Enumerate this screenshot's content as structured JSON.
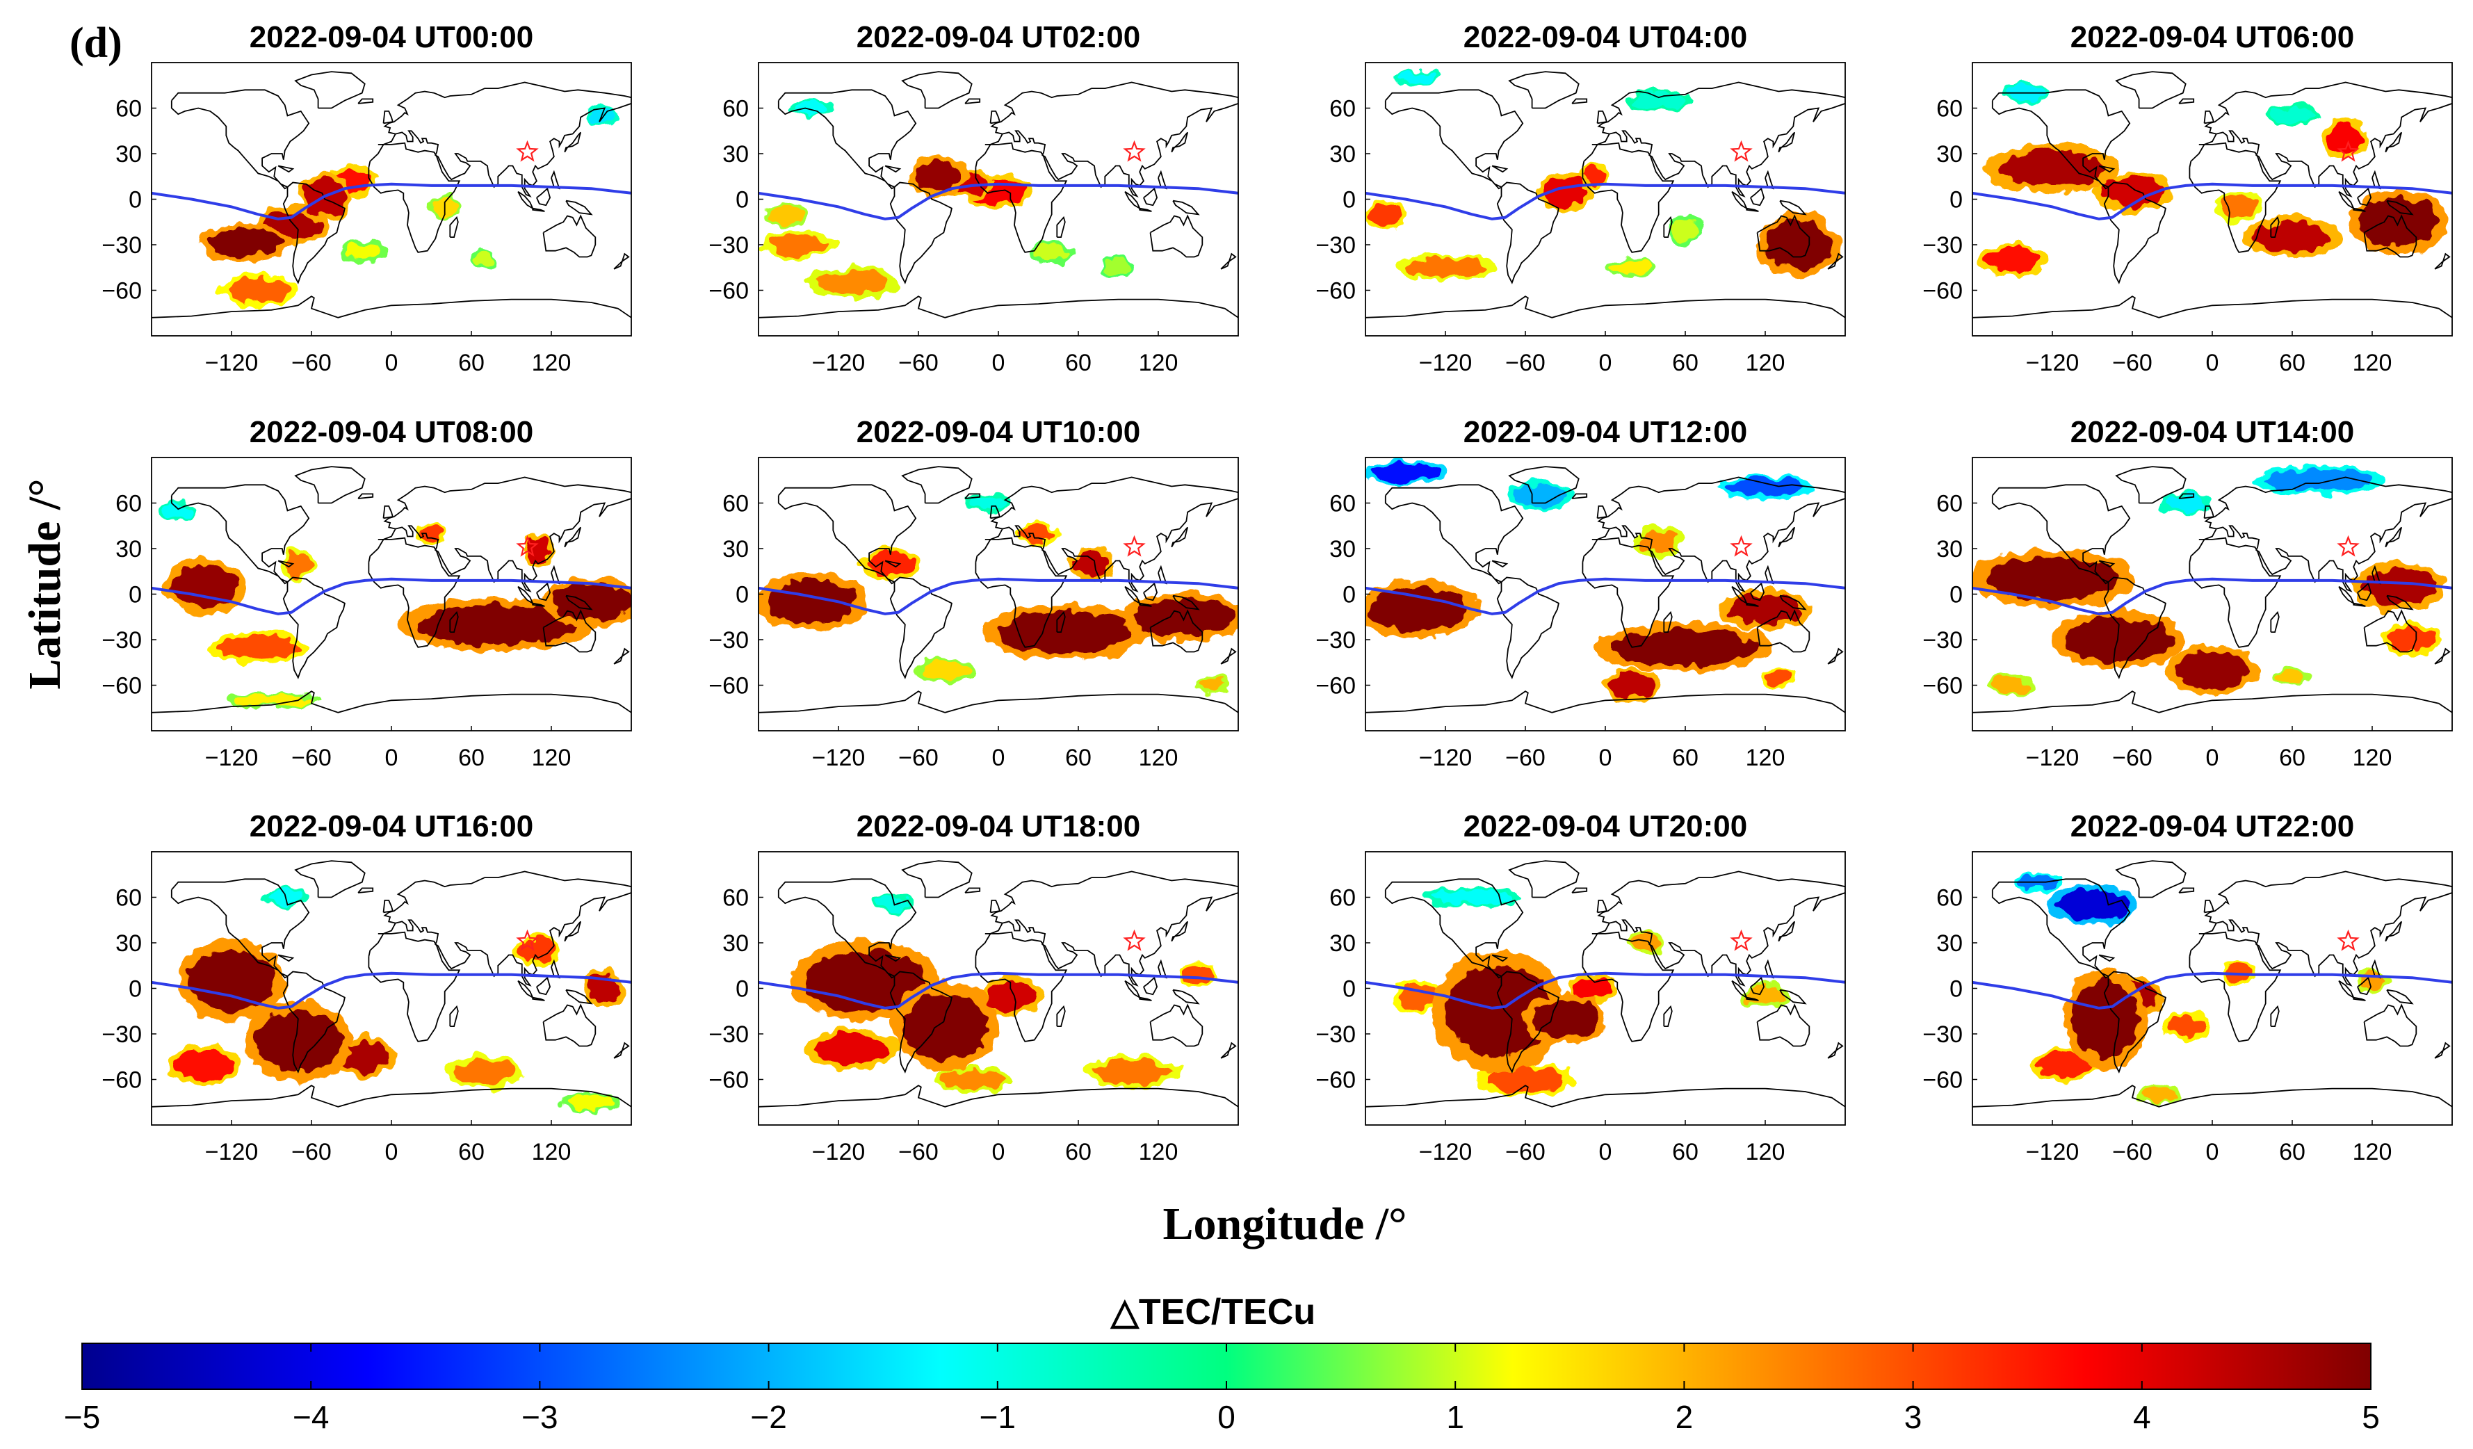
{
  "chart_data": {
    "type": "heatmap",
    "panel_label": "(d)",
    "xlabel": "Longitude /°",
    "ylabel": "Latitude /°",
    "xlim": [
      -180,
      180
    ],
    "ylim": [
      -90,
      90
    ],
    "xticks": [
      -120,
      -60,
      0,
      60,
      120
    ],
    "yticks": [
      60,
      30,
      0,
      -30,
      -60
    ],
    "xtick_labels": [
      "−120",
      "−60",
      "0",
      "60",
      "120"
    ],
    "ytick_labels": [
      "60",
      "30",
      "0",
      "−30",
      "−60"
    ],
    "star_marker": {
      "lon": 102,
      "lat": 31
    },
    "magnetic_equator": [
      [
        -180,
        4
      ],
      [
        -150,
        0
      ],
      [
        -120,
        -5
      ],
      [
        -100,
        -10
      ],
      [
        -85,
        -13
      ],
      [
        -75,
        -12
      ],
      [
        -65,
        -6
      ],
      [
        -50,
        2
      ],
      [
        -35,
        7
      ],
      [
        -20,
        9
      ],
      [
        0,
        10
      ],
      [
        30,
        9
      ],
      [
        60,
        9
      ],
      [
        90,
        9
      ],
      [
        120,
        8
      ],
      [
        150,
        7
      ],
      [
        180,
        4
      ]
    ],
    "colorbar": {
      "title": "△TEC/TECu",
      "range": [
        -5,
        5
      ],
      "ticks": [
        -5,
        -4,
        -3,
        -2,
        -1,
        0,
        1,
        2,
        3,
        4,
        5
      ],
      "tick_labels": [
        "−5",
        "−4",
        "−3",
        "−2",
        "−1",
        "0",
        "1",
        "2",
        "3",
        "4",
        "5"
      ]
    },
    "panels": [
      {
        "title": "2022-09-04 UT00:00",
        "anomalies": [
          {
            "lon": -110,
            "lat": -28,
            "rx": 28,
            "ry": 9,
            "v": 5
          },
          {
            "lon": -75,
            "lat": -18,
            "rx": 22,
            "ry": 10,
            "v": 4.6
          },
          {
            "lon": -50,
            "lat": 2,
            "rx": 16,
            "ry": 12,
            "v": 4.4
          },
          {
            "lon": -30,
            "lat": 12,
            "rx": 14,
            "ry": 8,
            "v": 3.6
          },
          {
            "lon": -100,
            "lat": -60,
            "rx": 24,
            "ry": 8,
            "v": 2.8
          },
          {
            "lon": -20,
            "lat": -35,
            "rx": 14,
            "ry": 6,
            "v": 1.2
          },
          {
            "lon": 40,
            "lat": -5,
            "rx": 10,
            "ry": 6,
            "v": 1.6
          },
          {
            "lon": 160,
            "lat": 55,
            "rx": 10,
            "ry": 5,
            "v": -1.5
          },
          {
            "lon": 70,
            "lat": -40,
            "rx": 8,
            "ry": 5,
            "v": 1.0
          }
        ]
      },
      {
        "title": "2022-09-04 UT02:00",
        "anomalies": [
          {
            "lon": -45,
            "lat": 15,
            "rx": 18,
            "ry": 10,
            "v": 4.8
          },
          {
            "lon": -20,
            "lat": 10,
            "rx": 12,
            "ry": 7,
            "v": 4.2
          },
          {
            "lon": 0,
            "lat": 5,
            "rx": 20,
            "ry": 8,
            "v": 3.8
          },
          {
            "lon": -150,
            "lat": -30,
            "rx": 22,
            "ry": 7,
            "v": 2.6
          },
          {
            "lon": -110,
            "lat": -55,
            "rx": 28,
            "ry": 8,
            "v": 2.4
          },
          {
            "lon": -160,
            "lat": -10,
            "rx": 14,
            "ry": 6,
            "v": 1.8
          },
          {
            "lon": 40,
            "lat": -35,
            "rx": 12,
            "ry": 6,
            "v": 1.0
          },
          {
            "lon": -140,
            "lat": 60,
            "rx": 14,
            "ry": 4,
            "v": -1.2
          },
          {
            "lon": 90,
            "lat": -45,
            "rx": 10,
            "ry": 5,
            "v": 0.8
          }
        ]
      },
      {
        "title": "2022-09-04 UT04:00",
        "anomalies": [
          {
            "lon": 145,
            "lat": -30,
            "rx": 25,
            "ry": 16,
            "v": 5
          },
          {
            "lon": -30,
            "lat": 5,
            "rx": 16,
            "ry": 10,
            "v": 4.0
          },
          {
            "lon": -10,
            "lat": 15,
            "rx": 10,
            "ry": 6,
            "v": 3.4
          },
          {
            "lon": -120,
            "lat": -45,
            "rx": 30,
            "ry": 6,
            "v": 2.6
          },
          {
            "lon": -165,
            "lat": -10,
            "rx": 12,
            "ry": 8,
            "v": 3.2
          },
          {
            "lon": 60,
            "lat": -20,
            "rx": 10,
            "ry": 8,
            "v": 1.0
          },
          {
            "lon": -140,
            "lat": 80,
            "rx": 14,
            "ry": 4,
            "v": -1.3
          },
          {
            "lon": 40,
            "lat": 65,
            "rx": 20,
            "ry": 5,
            "v": -0.8
          },
          {
            "lon": 20,
            "lat": -45,
            "rx": 14,
            "ry": 5,
            "v": 1.4
          }
        ]
      },
      {
        "title": "2022-09-04 UT06:00",
        "anomalies": [
          {
            "lon": 140,
            "lat": -15,
            "rx": 30,
            "ry": 16,
            "v": 5
          },
          {
            "lon": 60,
            "lat": -25,
            "rx": 30,
            "ry": 10,
            "v": 4.4
          },
          {
            "lon": -120,
            "lat": 20,
            "rx": 40,
            "ry": 12,
            "v": 4.6
          },
          {
            "lon": -60,
            "lat": 5,
            "rx": 24,
            "ry": 10,
            "v": 4.2
          },
          {
            "lon": -150,
            "lat": -40,
            "rx": 20,
            "ry": 8,
            "v": 3.6
          },
          {
            "lon": 100,
            "lat": 40,
            "rx": 14,
            "ry": 10,
            "v": 3.8
          },
          {
            "lon": 20,
            "lat": -5,
            "rx": 14,
            "ry": 8,
            "v": 2.6
          },
          {
            "lon": -140,
            "lat": 70,
            "rx": 14,
            "ry": 5,
            "v": -1.4
          },
          {
            "lon": 60,
            "lat": 55,
            "rx": 16,
            "ry": 5,
            "v": -0.8
          }
        ]
      },
      {
        "title": "2022-09-04 UT08:00",
        "anomalies": [
          {
            "lon": 80,
            "lat": -20,
            "rx": 60,
            "ry": 13,
            "v": 5
          },
          {
            "lon": 150,
            "lat": -5,
            "rx": 30,
            "ry": 12,
            "v": 5
          },
          {
            "lon": -140,
            "lat": 5,
            "rx": 25,
            "ry": 14,
            "v": 4.8
          },
          {
            "lon": -100,
            "lat": -35,
            "rx": 30,
            "ry": 8,
            "v": 3.0
          },
          {
            "lon": -70,
            "lat": 20,
            "rx": 10,
            "ry": 8,
            "v": 2.6
          },
          {
            "lon": 110,
            "lat": 30,
            "rx": 10,
            "ry": 8,
            "v": 4.2
          },
          {
            "lon": 30,
            "lat": 40,
            "rx": 10,
            "ry": 6,
            "v": 3.2
          },
          {
            "lon": -160,
            "lat": 55,
            "rx": 12,
            "ry": 5,
            "v": -1.2
          },
          {
            "lon": -90,
            "lat": -70,
            "rx": 28,
            "ry": 4,
            "v": 1.4
          }
        ]
      },
      {
        "title": "2022-09-04 UT10:00",
        "anomalies": [
          {
            "lon": 50,
            "lat": -25,
            "rx": 50,
            "ry": 14,
            "v": 5
          },
          {
            "lon": 140,
            "lat": -15,
            "rx": 38,
            "ry": 12,
            "v": 5
          },
          {
            "lon": -140,
            "lat": -5,
            "rx": 34,
            "ry": 14,
            "v": 5
          },
          {
            "lon": -80,
            "lat": 20,
            "rx": 18,
            "ry": 8,
            "v": 3.4
          },
          {
            "lon": 70,
            "lat": 20,
            "rx": 14,
            "ry": 8,
            "v": 4.4
          },
          {
            "lon": 30,
            "lat": 40,
            "rx": 12,
            "ry": 6,
            "v": 3.0
          },
          {
            "lon": -40,
            "lat": -50,
            "rx": 18,
            "ry": 6,
            "v": 1.6
          },
          {
            "lon": -10,
            "lat": 60,
            "rx": 14,
            "ry": 5,
            "v": -1.0
          },
          {
            "lon": 160,
            "lat": -60,
            "rx": 10,
            "ry": 5,
            "v": 2.0
          }
        ]
      },
      {
        "title": "2022-09-04 UT12:00",
        "anomalies": [
          {
            "lon": 60,
            "lat": -35,
            "rx": 55,
            "ry": 12,
            "v": 5
          },
          {
            "lon": -140,
            "lat": -10,
            "rx": 38,
            "ry": 14,
            "v": 5
          },
          {
            "lon": 120,
            "lat": -10,
            "rx": 28,
            "ry": 10,
            "v": 4.6
          },
          {
            "lon": 20,
            "lat": -60,
            "rx": 18,
            "ry": 8,
            "v": 4.4
          },
          {
            "lon": -150,
            "lat": 80,
            "rx": 25,
            "ry": 6,
            "v": -3.6
          },
          {
            "lon": 120,
            "lat": 70,
            "rx": 30,
            "ry": 6,
            "v": -3.0
          },
          {
            "lon": -50,
            "lat": 65,
            "rx": 20,
            "ry": 7,
            "v": -2.0
          },
          {
            "lon": 40,
            "lat": 35,
            "rx": 14,
            "ry": 8,
            "v": 2.4
          },
          {
            "lon": 130,
            "lat": -55,
            "rx": 10,
            "ry": 5,
            "v": 3.0
          }
        ]
      },
      {
        "title": "2022-09-04 UT14:00",
        "anomalies": [
          {
            "lon": -120,
            "lat": 10,
            "rx": 50,
            "ry": 14,
            "v": 5
          },
          {
            "lon": -70,
            "lat": -30,
            "rx": 40,
            "ry": 14,
            "v": 5
          },
          {
            "lon": 0,
            "lat": -50,
            "rx": 28,
            "ry": 12,
            "v": 4.8
          },
          {
            "lon": 140,
            "lat": 5,
            "rx": 28,
            "ry": 12,
            "v": 4.6
          },
          {
            "lon": 150,
            "lat": -30,
            "rx": 18,
            "ry": 8,
            "v": 3.2
          },
          {
            "lon": 80,
            "lat": 75,
            "rx": 40,
            "ry": 7,
            "v": -2.4
          },
          {
            "lon": -20,
            "lat": 60,
            "rx": 16,
            "ry": 5,
            "v": -1.4
          },
          {
            "lon": -150,
            "lat": -60,
            "rx": 14,
            "ry": 5,
            "v": 2.0
          },
          {
            "lon": 60,
            "lat": -55,
            "rx": 10,
            "ry": 5,
            "v": 1.8
          }
        ]
      },
      {
        "title": "2022-09-04 UT16:00",
        "anomalies": [
          {
            "lon": -120,
            "lat": 5,
            "rx": 32,
            "ry": 20,
            "v": 5
          },
          {
            "lon": -70,
            "lat": -35,
            "rx": 32,
            "ry": 20,
            "v": 5
          },
          {
            "lon": -20,
            "lat": -45,
            "rx": 18,
            "ry": 10,
            "v": 4.6
          },
          {
            "lon": -140,
            "lat": -50,
            "rx": 22,
            "ry": 10,
            "v": 3.6
          },
          {
            "lon": 70,
            "lat": -55,
            "rx": 24,
            "ry": 8,
            "v": 2.6
          },
          {
            "lon": 110,
            "lat": 25,
            "rx": 14,
            "ry": 8,
            "v": 3.2
          },
          {
            "lon": 160,
            "lat": 0,
            "rx": 12,
            "ry": 10,
            "v": 4.4
          },
          {
            "lon": -80,
            "lat": 60,
            "rx": 14,
            "ry": 5,
            "v": -1.2
          },
          {
            "lon": 150,
            "lat": -75,
            "rx": 18,
            "ry": 5,
            "v": 1.2
          }
        ]
      },
      {
        "title": "2022-09-04 UT18:00",
        "anomalies": [
          {
            "lon": -100,
            "lat": 5,
            "rx": 45,
            "ry": 20,
            "v": 5
          },
          {
            "lon": -40,
            "lat": -25,
            "rx": 32,
            "ry": 22,
            "v": 5
          },
          {
            "lon": 10,
            "lat": -5,
            "rx": 18,
            "ry": 10,
            "v": 4.2
          },
          {
            "lon": -110,
            "lat": -40,
            "rx": 28,
            "ry": 10,
            "v": 4.0
          },
          {
            "lon": 100,
            "lat": -55,
            "rx": 30,
            "ry": 8,
            "v": 2.6
          },
          {
            "lon": -20,
            "lat": -60,
            "rx": 24,
            "ry": 6,
            "v": 2.4
          },
          {
            "lon": 150,
            "lat": 10,
            "rx": 12,
            "ry": 6,
            "v": 3.0
          },
          {
            "lon": -80,
            "lat": 55,
            "rx": 12,
            "ry": 4,
            "v": -1.0
          }
        ]
      },
      {
        "title": "2022-09-04 UT20:00",
        "anomalies": [
          {
            "lon": -80,
            "lat": -15,
            "rx": 40,
            "ry": 30,
            "v": 5
          },
          {
            "lon": -30,
            "lat": -20,
            "rx": 25,
            "ry": 12,
            "v": 5
          },
          {
            "lon": -10,
            "lat": 0,
            "rx": 14,
            "ry": 8,
            "v": 3.8
          },
          {
            "lon": -60,
            "lat": -60,
            "rx": 30,
            "ry": 8,
            "v": 3.0
          },
          {
            "lon": -140,
            "lat": -5,
            "rx": 16,
            "ry": 8,
            "v": 2.8
          },
          {
            "lon": 120,
            "lat": -5,
            "rx": 14,
            "ry": 6,
            "v": 2.0
          },
          {
            "lon": -100,
            "lat": 60,
            "rx": 30,
            "ry": 5,
            "v": -1.2
          },
          {
            "lon": 30,
            "lat": 30,
            "rx": 10,
            "ry": 6,
            "v": 2.2
          }
        ]
      },
      {
        "title": "2022-09-04 UT22:00",
        "anomalies": [
          {
            "lon": -80,
            "lat": -20,
            "rx": 25,
            "ry": 25,
            "v": 5
          },
          {
            "lon": -60,
            "lat": -5,
            "rx": 18,
            "ry": 10,
            "v": 4.6
          },
          {
            "lon": -110,
            "lat": -50,
            "rx": 20,
            "ry": 8,
            "v": 3.4
          },
          {
            "lon": -20,
            "lat": -25,
            "rx": 14,
            "ry": 7,
            "v": 3.0
          },
          {
            "lon": 20,
            "lat": 10,
            "rx": 10,
            "ry": 6,
            "v": 3.0
          },
          {
            "lon": -90,
            "lat": 55,
            "rx": 28,
            "ry": 10,
            "v": -4.2
          },
          {
            "lon": -130,
            "lat": 70,
            "rx": 14,
            "ry": 5,
            "v": -2.6
          },
          {
            "lon": 120,
            "lat": 5,
            "rx": 10,
            "ry": 6,
            "v": 2.2
          },
          {
            "lon": -40,
            "lat": -70,
            "rx": 14,
            "ry": 5,
            "v": 2.0
          }
        ]
      }
    ]
  }
}
